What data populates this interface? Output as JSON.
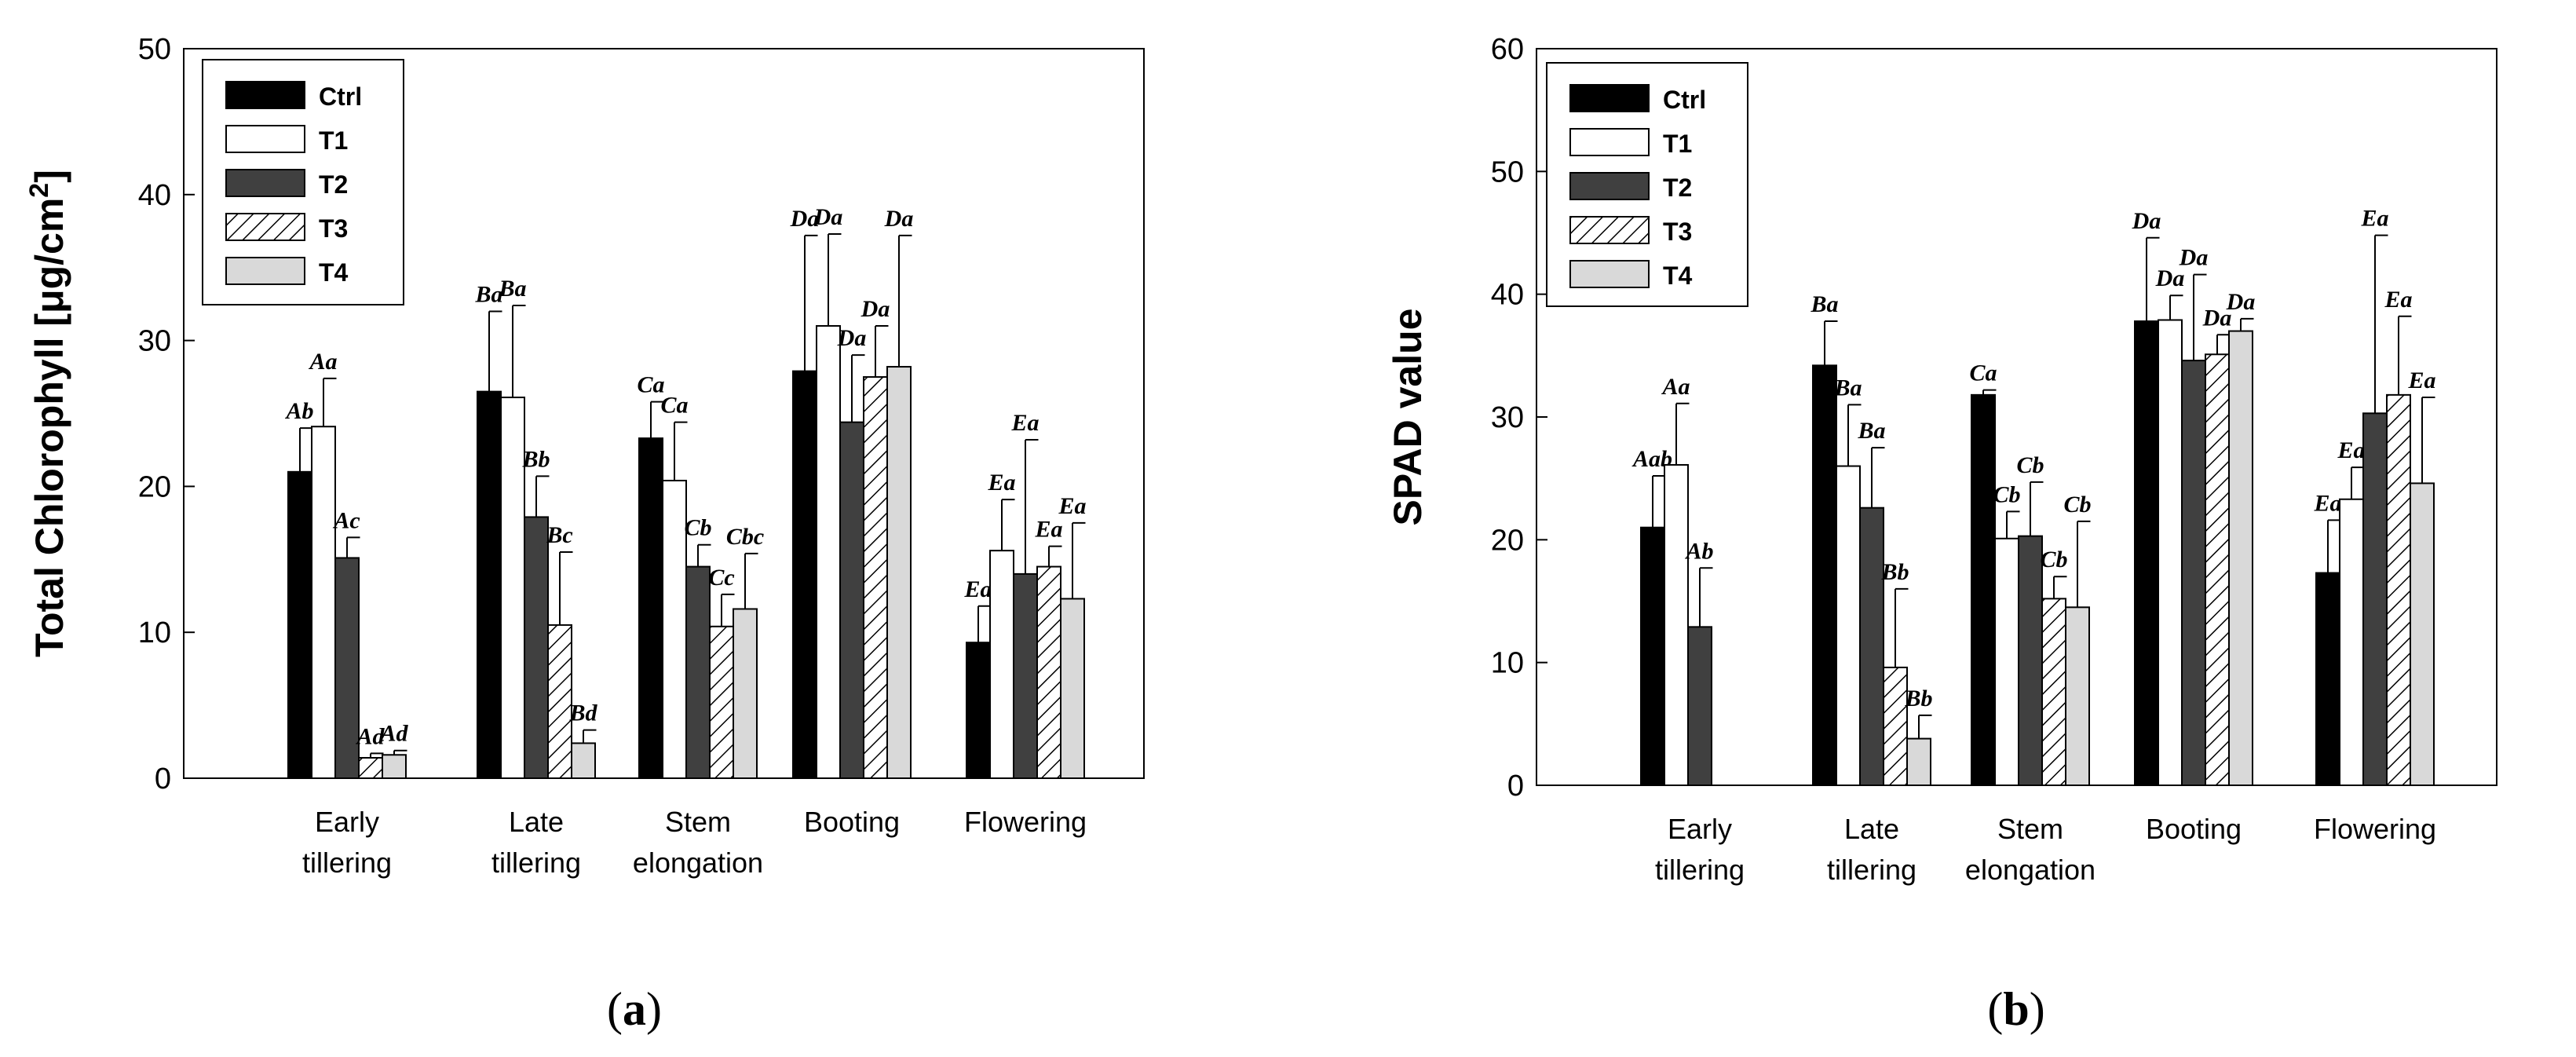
{
  "series_styles": [
    {
      "name": "Ctrl",
      "fill": "#000000",
      "pattern": "none"
    },
    {
      "name": "T1",
      "fill": "#ffffff",
      "pattern": "none"
    },
    {
      "name": "T2",
      "fill": "#404040",
      "pattern": "none"
    },
    {
      "name": "T3",
      "fill": "#ffffff",
      "pattern": "hatch"
    },
    {
      "name": "T4",
      "fill": "#d9d9d9",
      "pattern": "none"
    }
  ],
  "chart_data": [
    {
      "type": "bar",
      "panel": "(a)",
      "panel_open": "(",
      "panel_letter": "a",
      "panel_close": ")",
      "ylabel_text": "Total Chlorophyll [μg/cm",
      "ylabel_sup": "2",
      "ylabel_close": "]",
      "ylim": [
        0,
        50
      ],
      "yticks": [
        0,
        10,
        20,
        30,
        40,
        50
      ],
      "categories": [
        [
          "Early",
          "tillering"
        ],
        [
          "Late",
          "tillering"
        ],
        [
          "Stem",
          "elongation"
        ],
        [
          "Booting"
        ],
        [
          "Flowering"
        ]
      ],
      "series": [
        {
          "name": "Ctrl",
          "values": [
            21,
            26.5,
            23.3,
            27.9,
            9.3
          ],
          "errors": [
            3,
            5.5,
            2.5,
            9.3,
            2.5
          ],
          "labels": [
            "Ab",
            "Ba",
            "Ca",
            "Da",
            "Ea"
          ]
        },
        {
          "name": "T1",
          "values": [
            24.1,
            26.1,
            20.4,
            31,
            15.6
          ],
          "errors": [
            3.3,
            6.3,
            4,
            6.3,
            3.5
          ],
          "labels": [
            "Aa",
            "Ba",
            "Ca",
            "Da",
            "Ea"
          ]
        },
        {
          "name": "T2",
          "values": [
            15.1,
            17.9,
            14.5,
            24.4,
            14
          ],
          "errors": [
            1.4,
            2.8,
            1.5,
            4.6,
            9.2
          ],
          "labels": [
            "Ac",
            "Bb",
            "Cb",
            "Da",
            "Ea"
          ]
        },
        {
          "name": "T3",
          "values": [
            1.4,
            10.5,
            10.4,
            27.5,
            14.5
          ],
          "errors": [
            0.3,
            5,
            2.2,
            3.5,
            1.4
          ],
          "labels": [
            "Ad",
            "Bc",
            "Cc",
            "Da",
            "Ea"
          ]
        },
        {
          "name": "T4",
          "values": [
            1.6,
            2.4,
            11.6,
            28.2,
            12.3
          ],
          "errors": [
            0.3,
            0.9,
            3.8,
            9,
            5.2
          ],
          "labels": [
            "Ad",
            "Bd",
            "Cbc",
            "Da",
            "Ea"
          ]
        }
      ]
    },
    {
      "type": "bar",
      "panel": "(b)",
      "panel_open": "(",
      "panel_letter": "b",
      "panel_close": ")",
      "ylabel_text": "SPAD value",
      "ylim": [
        0,
        60
      ],
      "yticks": [
        0,
        10,
        20,
        30,
        40,
        50,
        60
      ],
      "categories": [
        [
          "Early",
          "tillering"
        ],
        [
          "Late",
          "tillering"
        ],
        [
          "Stem",
          "elongation"
        ],
        [
          "Booting"
        ],
        [
          "Flowering"
        ]
      ],
      "series": [
        {
          "name": "Ctrl",
          "values": [
            21,
            34.2,
            31.8,
            37.8,
            17.3
          ],
          "errors": [
            4.2,
            3.6,
            0.4,
            6.8,
            4.3
          ],
          "labels": [
            "Aab",
            "Ba",
            "Ca",
            "Da",
            "Ea"
          ]
        },
        {
          "name": "T1",
          "values": [
            26.1,
            26,
            20.1,
            37.9,
            23.3
          ],
          "errors": [
            5,
            5,
            2.2,
            2,
            2.6
          ],
          "labels": [
            "Aa",
            "Ba",
            "Cb",
            "Da",
            "Ea"
          ]
        },
        {
          "name": "T2",
          "values": [
            12.9,
            22.6,
            20.3,
            34.6,
            30.3
          ],
          "errors": [
            4.8,
            4.9,
            4.4,
            7,
            14.5
          ],
          "labels": [
            "Ab",
            "Ba",
            "Cb",
            "Da",
            "Ea"
          ]
        },
        {
          "name": "T3",
          "values": [
            null,
            9.6,
            15.2,
            35.1,
            31.8
          ],
          "errors": [
            null,
            6.4,
            1.8,
            1.6,
            6.4
          ],
          "labels": [
            null,
            "Bb",
            "Cb",
            "Da",
            "Ea"
          ]
        },
        {
          "name": "T4",
          "values": [
            null,
            3.8,
            14.5,
            37,
            24.6
          ],
          "errors": [
            null,
            1.9,
            7,
            1,
            7
          ],
          "labels": [
            null,
            "Bb",
            "Cb",
            "Da",
            "Ea"
          ]
        }
      ]
    }
  ]
}
